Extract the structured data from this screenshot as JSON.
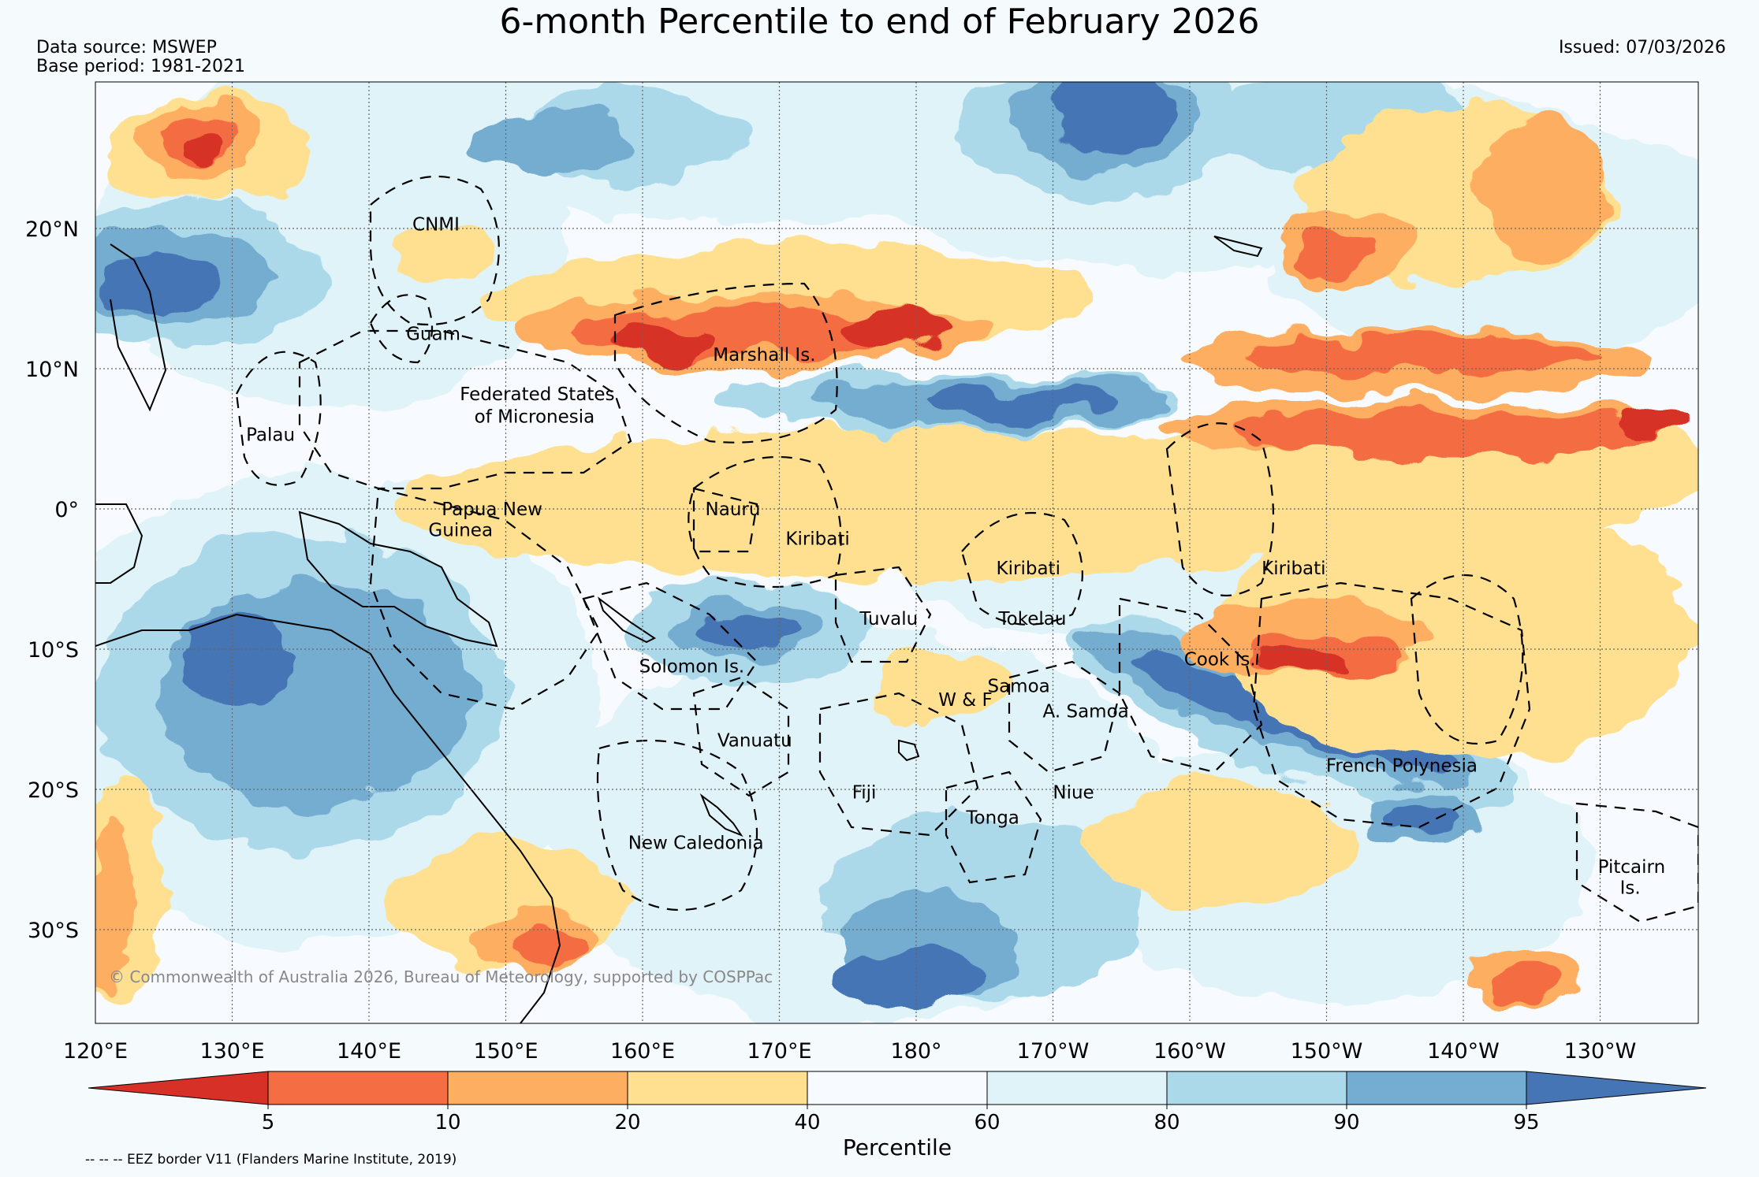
{
  "header": {
    "title": "6-month Percentile to end of February 2026",
    "data_source": "Data source: MSWEP",
    "base_period": "Base period: 1981-2021",
    "issued": "Issued: 07/03/2026"
  },
  "map": {
    "lat_labels": [
      "20°N",
      "10°N",
      "0°",
      "10°S",
      "20°S",
      "30°S"
    ],
    "lon_labels": [
      "120°E",
      "130°E",
      "140°E",
      "150°E",
      "160°E",
      "170°E",
      "180°",
      "170°W",
      "160°W",
      "150°W",
      "140°W",
      "130°W"
    ],
    "regions": [
      {
        "name": "CNMI",
        "lon": 144.9,
        "lat": 20.3
      },
      {
        "name": "Guam",
        "lon": 144.7,
        "lat": 12.5
      },
      {
        "name": "Marshall Is.",
        "lon": 168.9,
        "lat": 11.0
      },
      {
        "name": "Federated States",
        "lon": 152.3,
        "lat": 8.2
      },
      {
        "name": "of Micronesia",
        "lon": 152.1,
        "lat": 6.6
      },
      {
        "name": "Palau",
        "lon": 132.8,
        "lat": 5.3
      },
      {
        "name": "Papua New",
        "lon": 149.0,
        "lat": 0.0
      },
      {
        "name": "Guinea",
        "lon": 146.7,
        "lat": -1.5
      },
      {
        "name": "Nauru",
        "lon": 166.6,
        "lat": 0.0
      },
      {
        "name": "Kiribati",
        "lon": 172.8,
        "lat": -2.1
      },
      {
        "name": "Kiribati",
        "lon": -171.8,
        "lat": -4.2
      },
      {
        "name": "Kiribati",
        "lon": -152.4,
        "lat": -4.2
      },
      {
        "name": "Tuvalu",
        "lon": 178.0,
        "lat": -7.8
      },
      {
        "name": "Tokelau",
        "lon": -171.5,
        "lat": -7.8
      },
      {
        "name": "Solomon Is.",
        "lon": 163.6,
        "lat": -11.2
      },
      {
        "name": "Cook Is.",
        "lon": -157.8,
        "lat": -10.7
      },
      {
        "name": "Samoa",
        "lon": -172.5,
        "lat": -12.6
      },
      {
        "name": "W & F",
        "lon": -176.4,
        "lat": -13.6
      },
      {
        "name": "A. Samoa",
        "lon": -167.6,
        "lat": -14.4
      },
      {
        "name": "Vanuatu",
        "lon": 168.2,
        "lat": -16.5
      },
      {
        "name": "French Polynesia",
        "lon": -144.5,
        "lat": -18.3
      },
      {
        "name": "Fiji",
        "lon": 176.2,
        "lat": -20.2
      },
      {
        "name": "Niue",
        "lon": -168.5,
        "lat": -20.2
      },
      {
        "name": "Tonga",
        "lon": -174.4,
        "lat": -22.0
      },
      {
        "name": "New Caledonia",
        "lon": 163.9,
        "lat": -23.8
      },
      {
        "name": "Pitcairn",
        "lon": -127.7,
        "lat": -25.5
      },
      {
        "name": "Is.",
        "lon": -127.8,
        "lat": -27.0
      }
    ],
    "copyright": "© Commonwealth of Australia 2026, Bureau of Meteorology, supported by COSPPac"
  },
  "colorbar": {
    "label": "Percentile",
    "ticks": [
      "5",
      "10",
      "20",
      "40",
      "60",
      "80",
      "90",
      "95"
    ],
    "colors": [
      "#d73027",
      "#f46d43",
      "#fdae61",
      "#fee090",
      "#f7fbff",
      "#e0f3f8",
      "#abd9e9",
      "#74add1",
      "#4575b4"
    ]
  },
  "footer": {
    "eez_note": "-- -- -- EEZ border V11 (Flanders Marine Institute, 2019)"
  }
}
